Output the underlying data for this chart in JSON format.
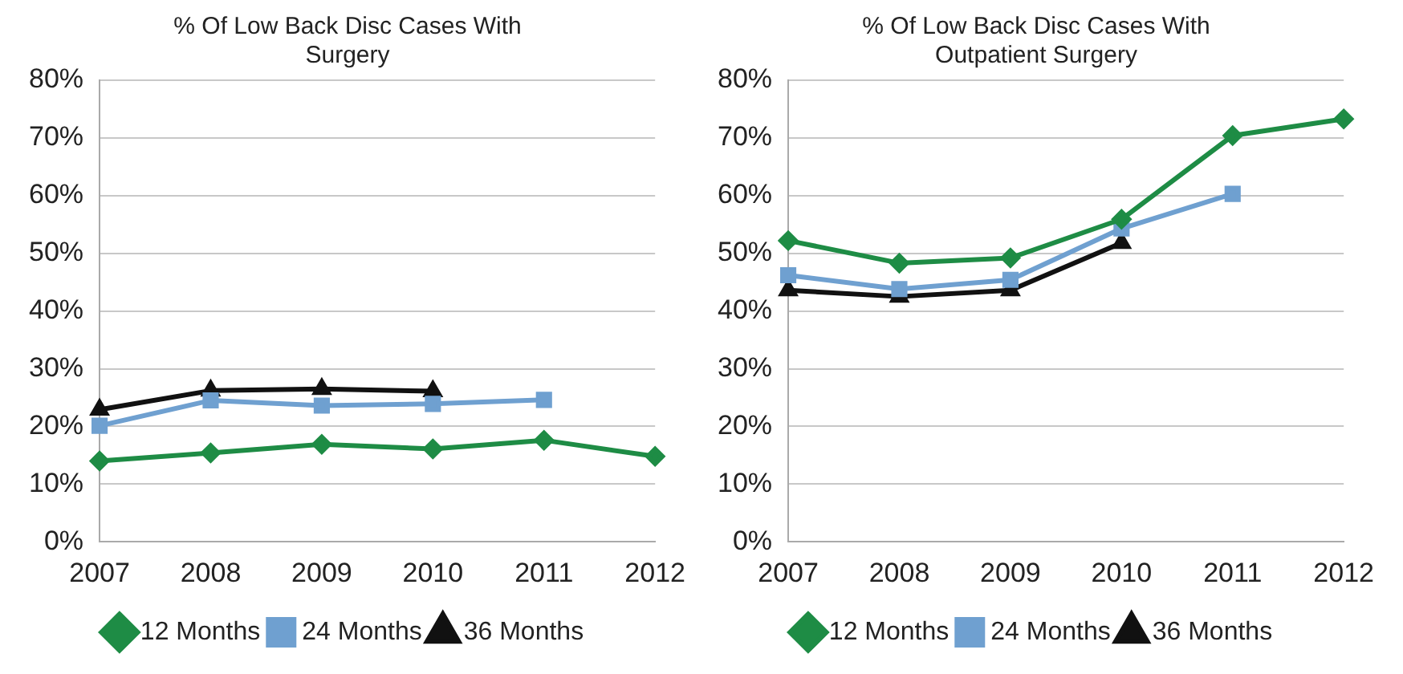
{
  "chart_data": [
    {
      "type": "line",
      "title": "% Of Low Back Disc Cases With Surgery",
      "categories": [
        "2007",
        "2008",
        "2009",
        "2010",
        "2011",
        "2012"
      ],
      "series": [
        {
          "name": "12 Months",
          "color": "#1e8c45",
          "marker": "diamond",
          "values": [
            14,
            15.4,
            16.9,
            16.1,
            17.6,
            14.8
          ]
        },
        {
          "name": "24 Months",
          "color": "#6fa0d0",
          "marker": "square",
          "values": [
            20.1,
            24.5,
            23.6,
            23.9,
            24.6,
            null
          ]
        },
        {
          "name": "36 Months",
          "color": "#111111",
          "marker": "triangle",
          "values": [
            22.9,
            26.2,
            26.5,
            26.1,
            null,
            null
          ]
        }
      ],
      "ylim": [
        0,
        80
      ],
      "yticks": [
        {
          "value": 0,
          "label": "0%"
        },
        {
          "value": 10,
          "label": "10%"
        },
        {
          "value": 20,
          "label": "20%"
        },
        {
          "value": 30,
          "label": "30%"
        },
        {
          "value": 40,
          "label": "40%"
        },
        {
          "value": 50,
          "label": "50%"
        },
        {
          "value": 60,
          "label": "60%"
        },
        {
          "value": 70,
          "label": "70%"
        },
        {
          "value": 80,
          "label": "80%"
        }
      ],
      "grid": "y",
      "legend": "bottom"
    },
    {
      "type": "line",
      "title": "% Of Low Back Disc Cases With Outpatient Surgery",
      "categories": [
        "2007",
        "2008",
        "2009",
        "2010",
        "2011",
        "2012"
      ],
      "series": [
        {
          "name": "12 Months",
          "color": "#1e8c45",
          "marker": "diamond",
          "values": [
            52.2,
            48.3,
            49.2,
            55.9,
            70.4,
            73.3
          ]
        },
        {
          "name": "24 Months",
          "color": "#6fa0d0",
          "marker": "square",
          "values": [
            46.2,
            43.8,
            45.4,
            54.3,
            60.3,
            null
          ]
        },
        {
          "name": "36 Months",
          "color": "#111111",
          "marker": "triangle",
          "values": [
            43.6,
            42.5,
            43.6,
            51.8,
            null,
            null
          ]
        }
      ],
      "ylim": [
        0,
        80
      ],
      "yticks": [
        {
          "value": 0,
          "label": "0%"
        },
        {
          "value": 10,
          "label": "10%"
        },
        {
          "value": 20,
          "label": "20%"
        },
        {
          "value": 30,
          "label": "30%"
        },
        {
          "value": 40,
          "label": "40%"
        },
        {
          "value": 50,
          "label": "50%"
        },
        {
          "value": 60,
          "label": "60%"
        },
        {
          "value": 70,
          "label": "70%"
        },
        {
          "value": 80,
          "label": "80%"
        }
      ],
      "grid": "y",
      "legend": "bottom"
    }
  ]
}
